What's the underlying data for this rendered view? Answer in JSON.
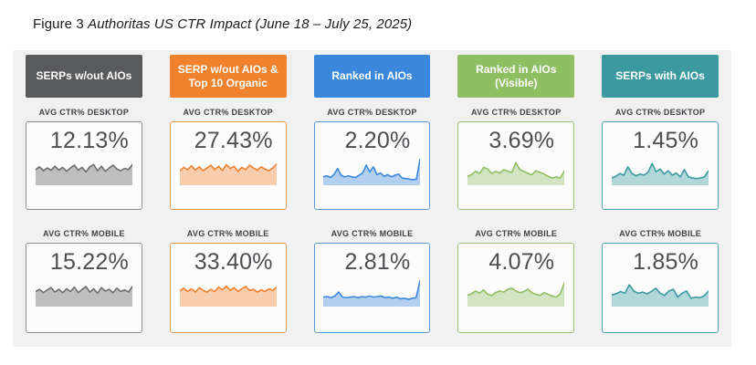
{
  "title": {
    "figure_label": "Figure 3",
    "figure_caption": "Authoritas US CTR Impact (June 18 – July 25, 2025)"
  },
  "chart_data": {
    "type": "area",
    "layout": "5 category columns, each with two sparkline area mini-charts (desktop and mobile average CTR %), value label printed above each sparkline",
    "legend_position": "none",
    "grid": false,
    "columns": [
      {
        "header": "SERPs w/out AIOs",
        "color": "#595a5c",
        "border_color": "#8c8c8c",
        "line_color": "#6e6e6e",
        "desktop": {
          "label": "AVG CTR% DESKTOP",
          "value": "12.13%",
          "spark": [
            52,
            62,
            48,
            58,
            50,
            64,
            50,
            60,
            46,
            58,
            68,
            50,
            60,
            44,
            62,
            70,
            48,
            64,
            46,
            58,
            68,
            54,
            48,
            56,
            52,
            70
          ]
        },
        "mobile": {
          "label": "AVG CTR% MOBILE",
          "value": "15.22%",
          "spark": [
            50,
            58,
            46,
            56,
            64,
            48,
            58,
            46,
            60,
            50,
            66,
            46,
            58,
            68,
            48,
            60,
            44,
            64,
            52,
            58,
            46,
            62,
            50,
            56,
            48,
            68
          ]
        }
      },
      {
        "header": "SERP w/out AIOs & Top 10 Organic",
        "color": "#f0822d",
        "border_color": "#ec9853",
        "line_color": "#f0822d",
        "desktop": {
          "label": "AVG CTR% DESKTOP",
          "value": "27.43%",
          "spark": [
            48,
            60,
            52,
            66,
            50,
            62,
            48,
            58,
            68,
            52,
            64,
            48,
            70,
            56,
            64,
            46,
            60,
            52,
            68,
            58,
            50,
            62,
            54,
            48,
            58,
            72
          ]
        },
        "mobile": {
          "label": "AVG CTR% MOBILE",
          "value": "33.40%",
          "spark": [
            52,
            62,
            50,
            60,
            48,
            64,
            54,
            48,
            58,
            50,
            66,
            56,
            70,
            54,
            64,
            50,
            60,
            68,
            54,
            58,
            48,
            56,
            50,
            60,
            54,
            66
          ]
        }
      },
      {
        "header": "Ranked in AIOs",
        "color": "#3b87dc",
        "border_color": "#5b9bd5",
        "line_color": "#3b87dc",
        "desktop": {
          "label": "AVG CTR% DESKTOP",
          "value": "2.20%",
          "spark": [
            26,
            30,
            24,
            34,
            56,
            32,
            26,
            30,
            26,
            24,
            32,
            40,
            68,
            44,
            62,
            34,
            40,
            28,
            34,
            26,
            32,
            36,
            22,
            20,
            18,
            16,
            18,
            88
          ]
        },
        "mobile": {
          "label": "AVG CTR% MOBILE",
          "value": "2.81%",
          "spark": [
            30,
            32,
            28,
            34,
            48,
            30,
            28,
            30,
            32,
            28,
            32,
            30,
            34,
            30,
            32,
            34,
            28,
            30,
            26,
            30,
            24,
            26,
            22,
            26,
            28,
            88
          ]
        }
      },
      {
        "header": "Ranked in AIOs (Visible)",
        "color": "#8fbe63",
        "border_color": "#9bbe74",
        "line_color": "#8fbe63",
        "desktop": {
          "label": "AVG CTR% DESKTOP",
          "value": "3.69%",
          "spark": [
            28,
            34,
            46,
            38,
            60,
            54,
            38,
            46,
            40,
            52,
            46,
            42,
            76,
            52,
            46,
            38,
            34,
            48,
            42,
            36,
            28,
            22,
            26,
            22,
            46
          ]
        },
        "mobile": {
          "label": "AVG CTR% MOBILE",
          "value": "4.07%",
          "spark": [
            36,
            42,
            52,
            44,
            56,
            40,
            36,
            46,
            52,
            48,
            58,
            62,
            52,
            46,
            50,
            58,
            46,
            40,
            36,
            46,
            40,
            34,
            30,
            42,
            80
          ]
        }
      },
      {
        "header": "SERPs with AIOs",
        "color": "#3a9aa0",
        "border_color": "#4fa3a8",
        "line_color": "#3a9aa0",
        "desktop": {
          "label": "AVG CTR% DESKTOP",
          "value": "1.45%",
          "spark": [
            22,
            28,
            38,
            32,
            62,
            38,
            30,
            36,
            32,
            42,
            74,
            44,
            54,
            36,
            48,
            32,
            40,
            26,
            52,
            26,
            22,
            20,
            22,
            26,
            48
          ]
        },
        "mobile": {
          "label": "AVG CTR% MOBILE",
          "value": "1.85%",
          "spark": [
            38,
            42,
            50,
            44,
            74,
            52,
            44,
            48,
            42,
            50,
            62,
            44,
            36,
            52,
            58,
            30,
            44,
            52,
            26,
            30,
            28,
            34,
            52
          ]
        }
      }
    ]
  }
}
